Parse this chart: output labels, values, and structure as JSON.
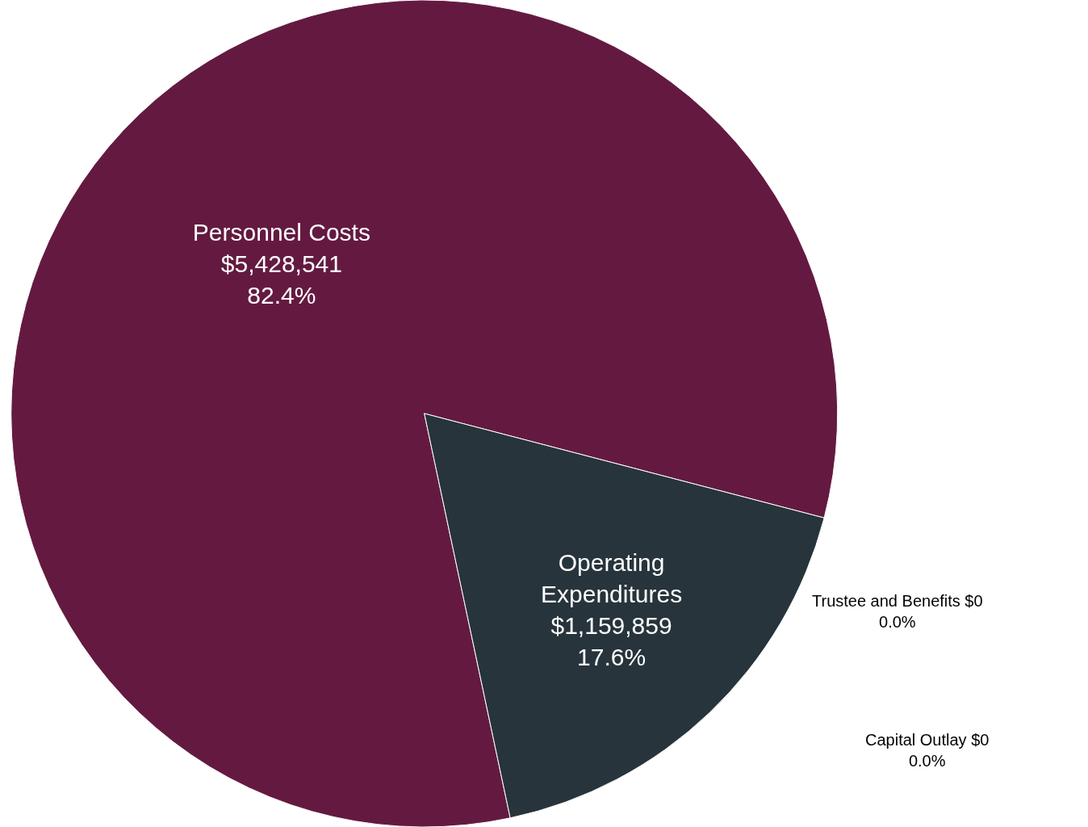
{
  "chart_data": {
    "type": "pie",
    "categories": [
      "Personnel Costs",
      "Operating Expenditures",
      "Trustee and Benefits",
      "Capital Outlay"
    ],
    "values": [
      5428541,
      1159859,
      0,
      0
    ],
    "colors": [
      "#641a40",
      "#27343b",
      "#8a8a8a",
      "#5a5a5a"
    ],
    "value_labels": [
      "$5,428,541\n82.4%",
      "$1,159,859\n17.6%",
      "$0\n0.0%",
      "$0\n0.0%"
    ],
    "legend": false
  }
}
